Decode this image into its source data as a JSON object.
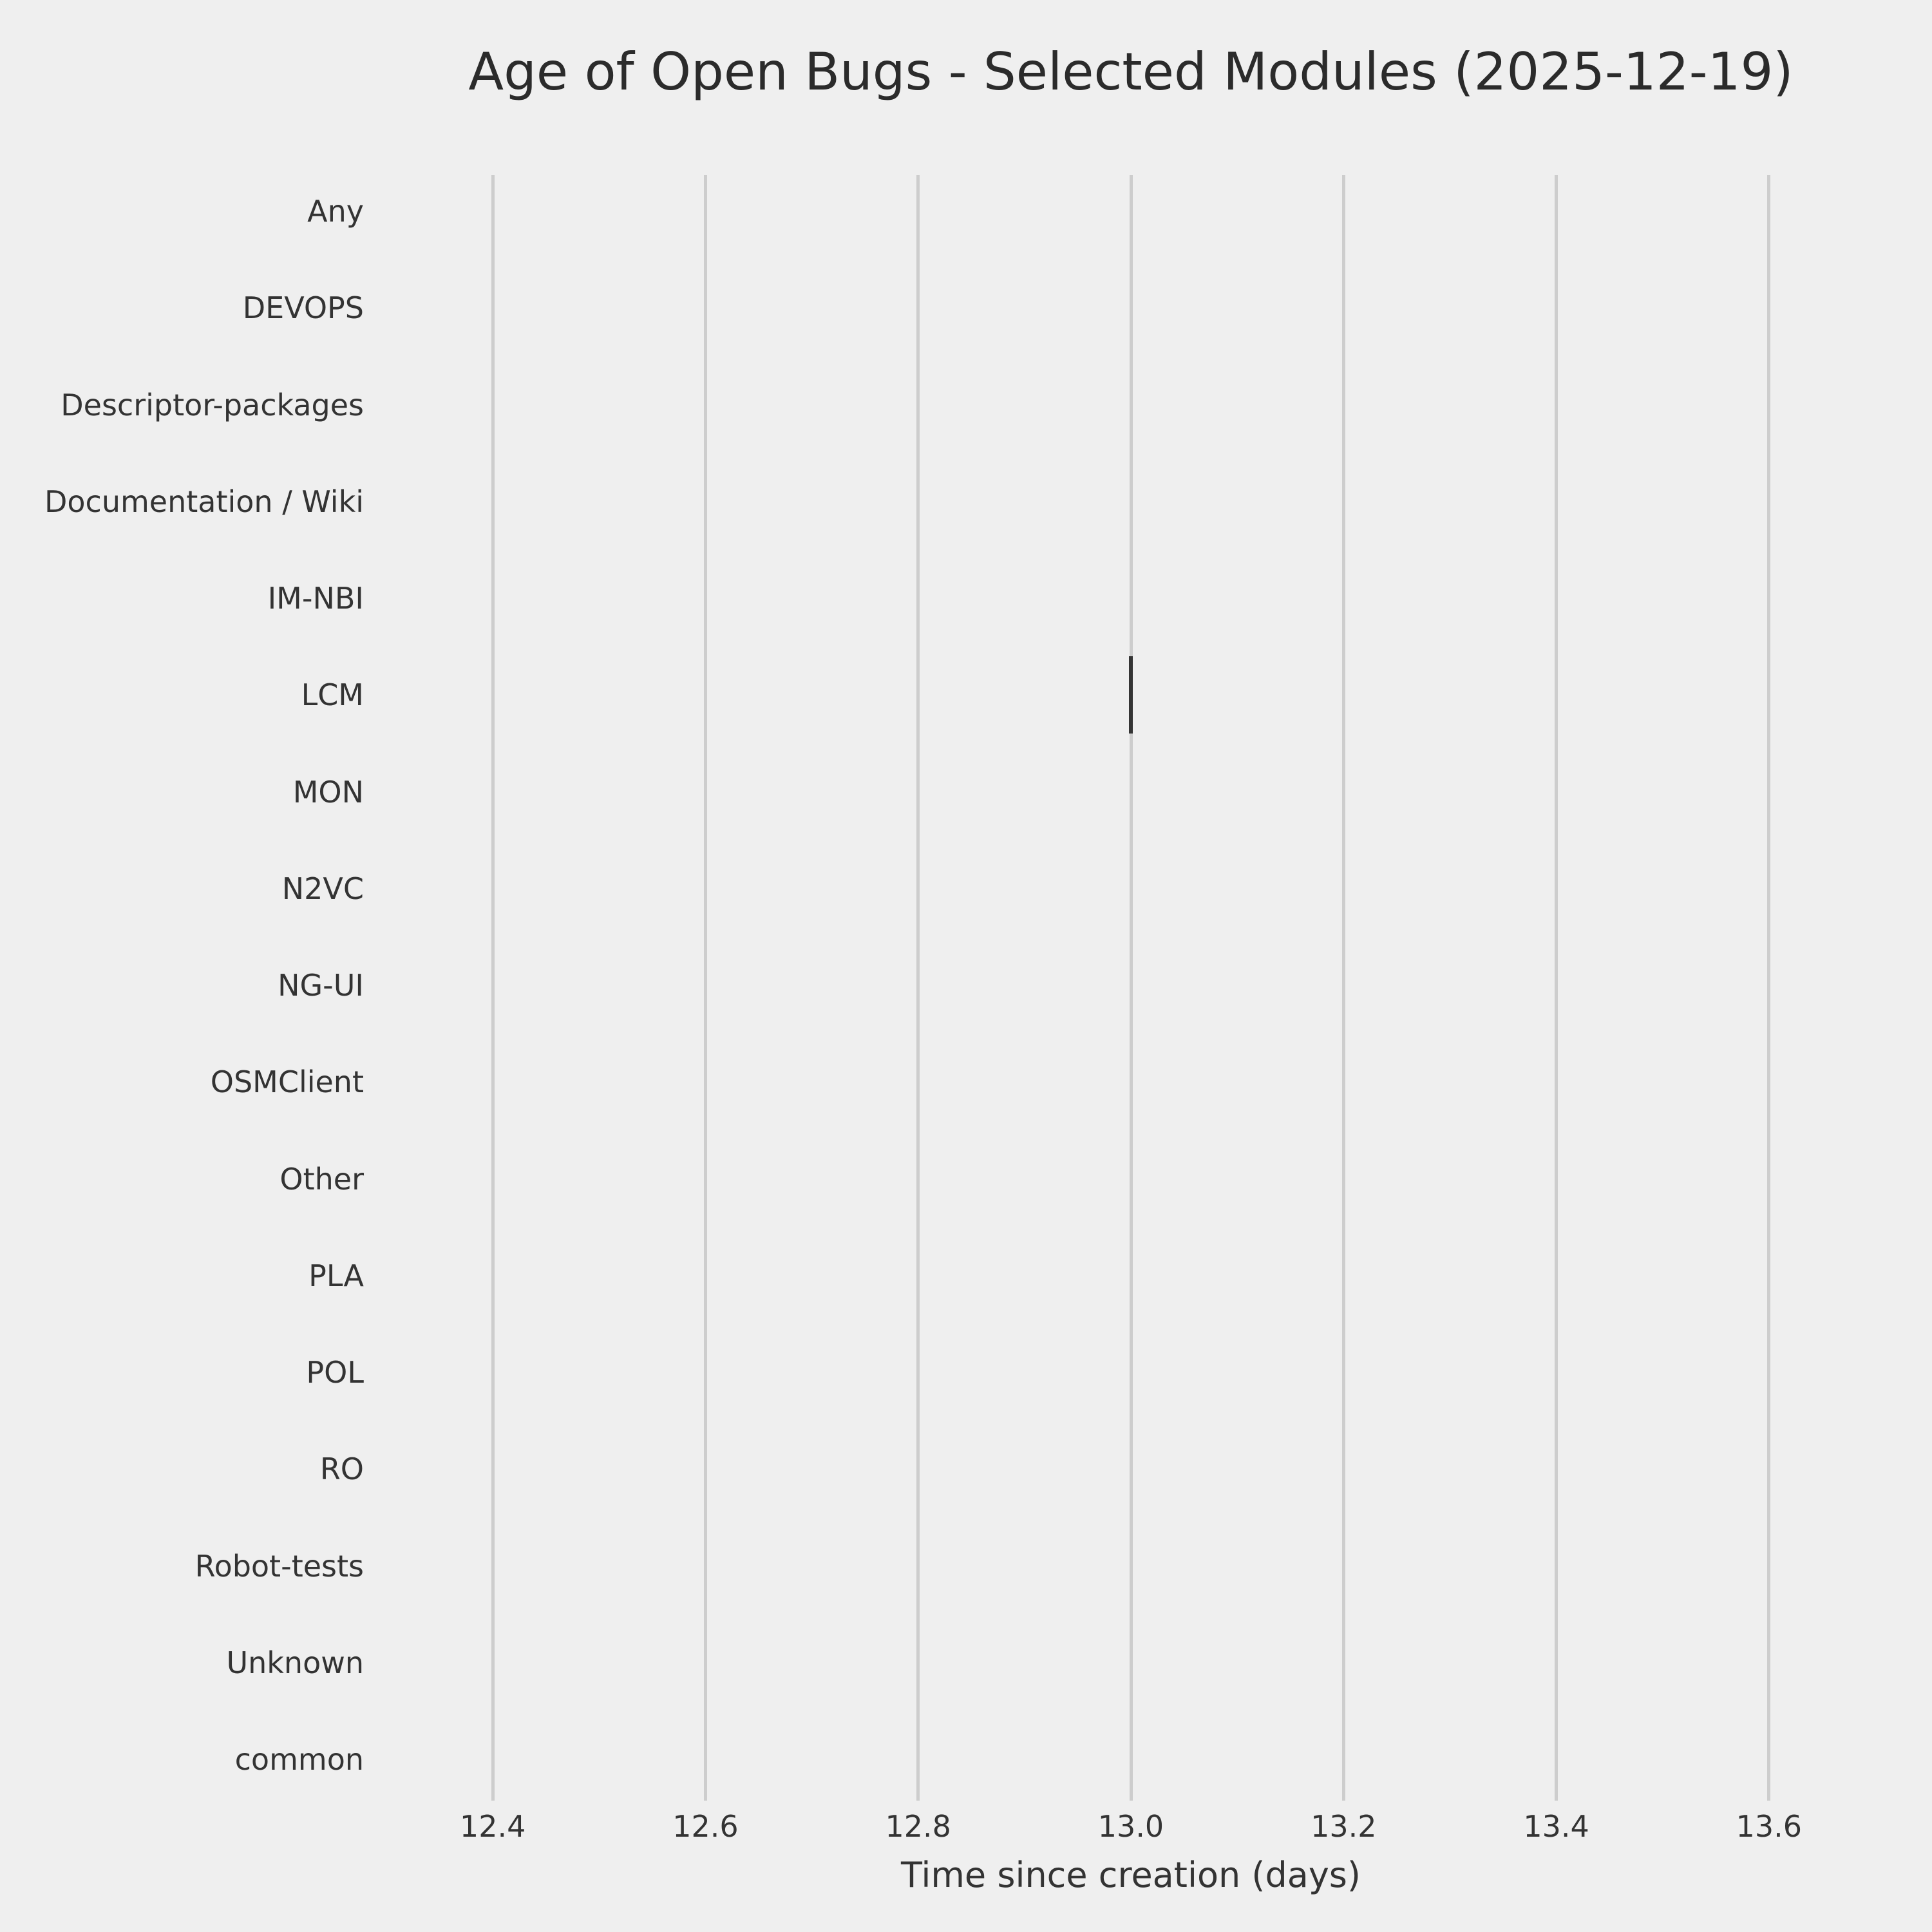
{
  "chart_data": {
    "type": "scatter",
    "subtype": "horizontal-boxplot-degenerate",
    "title": "Age of Open Bugs - Selected Modules (2025-12-19)",
    "xlabel": "Time since creation (days)",
    "ylabel": "",
    "categories": [
      "Any",
      "DEVOPS",
      "Descriptor-packages",
      "Documentation / Wiki",
      "IM-NBI",
      "LCM",
      "MON",
      "N2VC",
      "NG-UI",
      "OSMClient",
      "Other",
      "PLA",
      "POL",
      "RO",
      "Robot-tests",
      "Unknown",
      "common"
    ],
    "x_ticks": [
      12.4,
      12.6,
      12.8,
      13.0,
      13.2,
      13.4,
      13.6
    ],
    "xlim": [
      12.3,
      13.7
    ],
    "grid": "vertical-only",
    "legend": "none",
    "points": [
      {
        "category": "LCM",
        "x": 13.0,
        "marker": "vertical-line"
      }
    ],
    "colors": {
      "background": "#efefef",
      "gridline": "#cdcdcd",
      "mark": "#343434",
      "text": "#333333"
    }
  }
}
